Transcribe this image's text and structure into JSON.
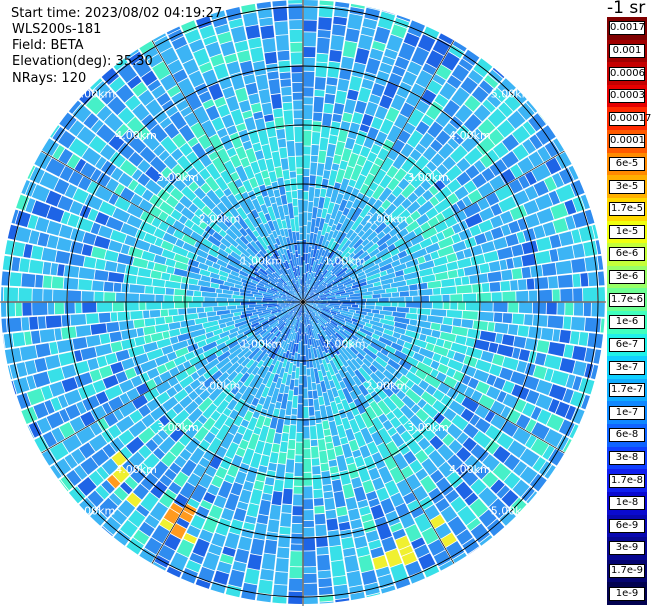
{
  "info": {
    "start_time": "Start time: 2023/08/02 04:19:27",
    "instrument": "WLS200s-181",
    "field": "Field: BETA",
    "elevation": "Elevation(deg): 35.30",
    "nrays": "NRays: 120"
  },
  "colorbar": {
    "title": "-1 sr",
    "labels": [
      "0.0017",
      "0.001",
      "0.0006",
      "0.0003",
      "0.00017",
      "0.0001",
      "6e-5",
      "3e-5",
      "1.7e-5",
      "1e-5",
      "6e-6",
      "3e-6",
      "1.7e-6",
      "1e-6",
      "6e-7",
      "3e-7",
      "1.7e-7",
      "1e-7",
      "6e-8",
      "3e-8",
      "1.7e-8",
      "1e-8",
      "6e-9",
      "3e-9",
      "1.7e-9",
      "1e-9"
    ],
    "colors": [
      "#7f0000",
      "#a00000",
      "#c40000",
      "#e60000",
      "#ff2a00",
      "#ff5a00",
      "#ff8a00",
      "#ffb000",
      "#ffd800",
      "#f0ff10",
      "#c4ff3a",
      "#98ff66",
      "#6cff92",
      "#40ffbe",
      "#20f0e8",
      "#10d0ff",
      "#10acff",
      "#1088ff",
      "#1064ff",
      "#1040ff",
      "#1020f0",
      "#0a0ad0",
      "#0808b0",
      "#060690",
      "#040470",
      "#020250"
    ]
  },
  "scope": {
    "ring_labels": [
      "1.00km",
      "2.00km",
      "3.00km",
      "4.00km",
      "5.00km"
    ],
    "nrays": 120,
    "palette": {
      "dark_blue": "#1e64e6",
      "mid_blue": "#2f8cf0",
      "light_blue": "#3cb4f5",
      "cyan": "#38e0e8",
      "aqua": "#46f0c8",
      "yellow": "#f0f030",
      "orange": "#ff9a1e",
      "gap": "#ffffff",
      "grid": "#000000"
    }
  }
}
